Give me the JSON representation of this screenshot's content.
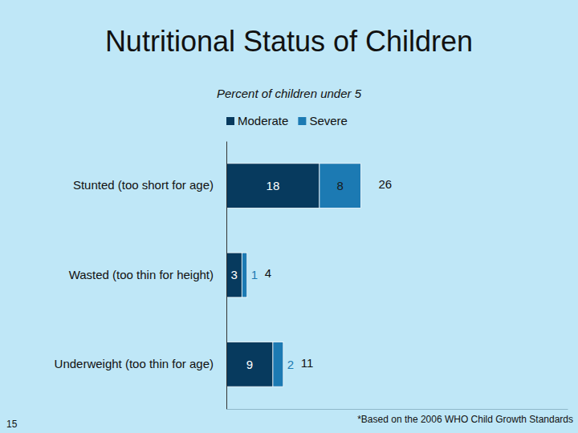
{
  "chart_data": {
    "type": "bar",
    "title": "Nutritional Status of Children",
    "subtitle": "Percent of children under 5",
    "orientation": "horizontal",
    "stacked": true,
    "data_labels": true,
    "tick_labels": "y",
    "legend": "top",
    "grid": false,
    "categories": [
      "Stunted (too short for age)",
      "Wasted (too thin for height)",
      "Underweight (too thin for age)"
    ],
    "series": [
      {
        "name": "Moderate",
        "color": "#073a5e",
        "values": [
          18,
          3,
          9
        ]
      },
      {
        "name": "Severe",
        "color": "#1c7ab3",
        "values": [
          8,
          1,
          2
        ]
      }
    ],
    "totals": [
      26,
      4,
      11
    ],
    "xlim": [
      0,
      66
    ]
  },
  "footnote": "*Based on the 2006 WHO Child Growth Standards",
  "page_number": 15
}
